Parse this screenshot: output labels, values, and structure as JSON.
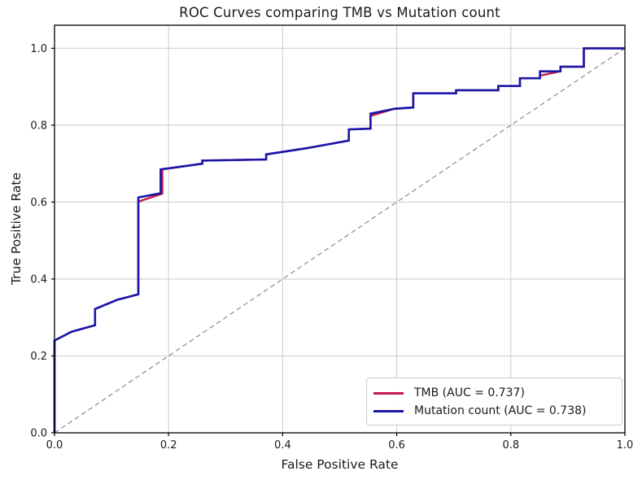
{
  "figure": {
    "title": "ROC Curves comparing TMB vs Mutation count",
    "xlabel": "False Positive Rate",
    "ylabel": "True Positive Rate"
  },
  "colors": {
    "grid": "#cbcbcb",
    "axis": "#000000",
    "diagonal": "#8a8a8a",
    "background": "#ffffff",
    "legend_border": "#cccccc",
    "text": "#1a1a1a"
  },
  "chart_data": {
    "type": "line",
    "title": "ROC Curves comparing TMB vs Mutation count",
    "xlabel": "False Positive Rate",
    "ylabel": "True Positive Rate",
    "xlim": [
      0,
      1.0
    ],
    "ylim": [
      0,
      1.06
    ],
    "grid": true,
    "legend_position": "lower right",
    "xticks": [
      0.0,
      0.2,
      0.4,
      0.6,
      0.8,
      1.0
    ],
    "yticks": [
      0.0,
      0.2,
      0.4,
      0.6,
      0.8,
      1.0
    ],
    "xtick_labels": [
      "0.0",
      "0.2",
      "0.4",
      "0.6",
      "0.8",
      "1.0"
    ],
    "ytick_labels": [
      "0.0",
      "0.2",
      "0.4",
      "0.6",
      "0.8",
      "1.0"
    ],
    "reference_line": {
      "name": "chance-diagonal",
      "style": "dashed",
      "points": [
        [
          0,
          0
        ],
        [
          1,
          1
        ]
      ]
    },
    "series": [
      {
        "name": "TMB (AUC = 0.737)",
        "auc": 0.737,
        "color": "#c2194b",
        "linewidth": 2.4,
        "points": [
          [
            0.0,
            0.0
          ],
          [
            0.0,
            0.24
          ],
          [
            0.03,
            0.263
          ],
          [
            0.071,
            0.28
          ],
          [
            0.071,
            0.322
          ],
          [
            0.11,
            0.346
          ],
          [
            0.147,
            0.36
          ],
          [
            0.147,
            0.601
          ],
          [
            0.189,
            0.622
          ],
          [
            0.189,
            0.685
          ],
          [
            0.259,
            0.7
          ],
          [
            0.259,
            0.708
          ],
          [
            0.371,
            0.711
          ],
          [
            0.371,
            0.724
          ],
          [
            0.445,
            0.741
          ],
          [
            0.516,
            0.76
          ],
          [
            0.516,
            0.789
          ],
          [
            0.554,
            0.791
          ],
          [
            0.554,
            0.824
          ],
          [
            0.594,
            0.842
          ],
          [
            0.629,
            0.846
          ],
          [
            0.629,
            0.883
          ],
          [
            0.704,
            0.883
          ],
          [
            0.704,
            0.891
          ],
          [
            0.778,
            0.891
          ],
          [
            0.778,
            0.902
          ],
          [
            0.816,
            0.902
          ],
          [
            0.816,
            0.922
          ],
          [
            0.851,
            0.922
          ],
          [
            0.851,
            0.929
          ],
          [
            0.887,
            0.94
          ],
          [
            0.887,
            0.952
          ],
          [
            0.928,
            0.952
          ],
          [
            0.928,
            1.0
          ],
          [
            1.0,
            1.0
          ]
        ]
      },
      {
        "name": "Mutation count (AUC = 0.738)",
        "auc": 0.738,
        "color": "#1a16a8",
        "linewidth": 2.6,
        "points": [
          [
            0.0,
            0.0
          ],
          [
            0.0,
            0.24
          ],
          [
            0.03,
            0.263
          ],
          [
            0.071,
            0.28
          ],
          [
            0.071,
            0.322
          ],
          [
            0.11,
            0.346
          ],
          [
            0.147,
            0.36
          ],
          [
            0.147,
            0.612
          ],
          [
            0.186,
            0.623
          ],
          [
            0.186,
            0.685
          ],
          [
            0.259,
            0.7
          ],
          [
            0.259,
            0.708
          ],
          [
            0.371,
            0.711
          ],
          [
            0.371,
            0.724
          ],
          [
            0.445,
            0.741
          ],
          [
            0.516,
            0.76
          ],
          [
            0.516,
            0.789
          ],
          [
            0.554,
            0.791
          ],
          [
            0.554,
            0.83
          ],
          [
            0.597,
            0.843
          ],
          [
            0.629,
            0.846
          ],
          [
            0.629,
            0.883
          ],
          [
            0.704,
            0.883
          ],
          [
            0.704,
            0.891
          ],
          [
            0.778,
            0.891
          ],
          [
            0.778,
            0.902
          ],
          [
            0.816,
            0.902
          ],
          [
            0.816,
            0.922
          ],
          [
            0.851,
            0.922
          ],
          [
            0.851,
            0.94
          ],
          [
            0.887,
            0.94
          ],
          [
            0.887,
            0.952
          ],
          [
            0.928,
            0.952
          ],
          [
            0.928,
            1.0
          ],
          [
            1.0,
            1.0
          ]
        ]
      }
    ]
  }
}
